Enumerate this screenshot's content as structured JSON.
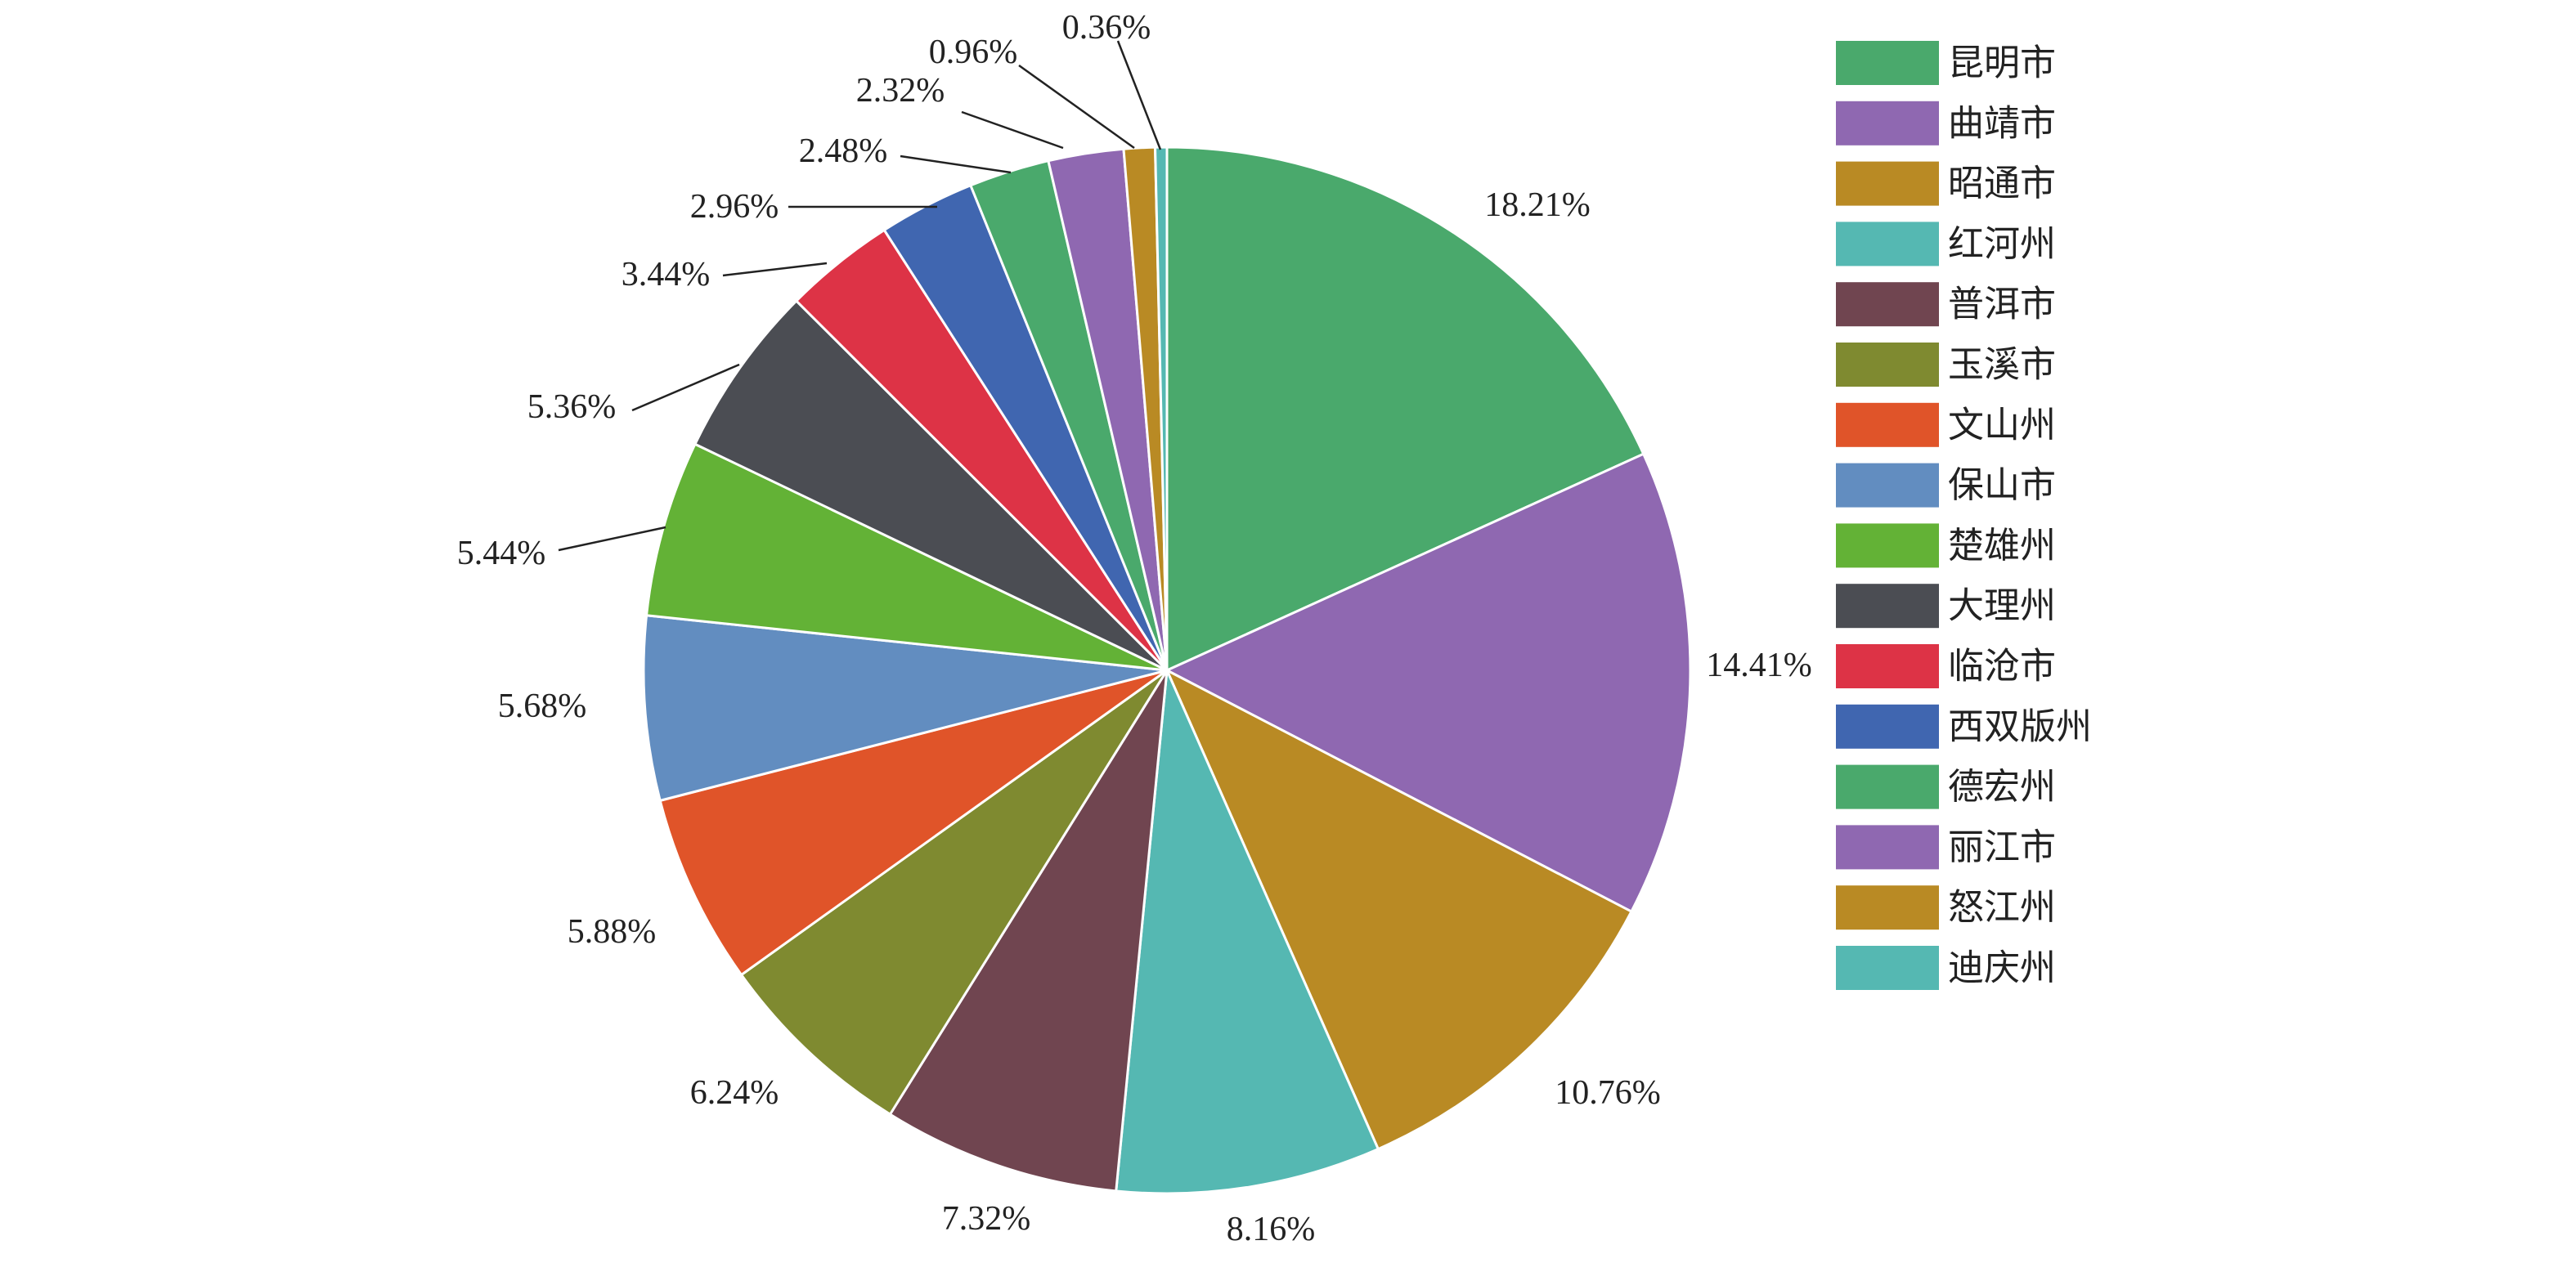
{
  "chart_data": {
    "type": "pie",
    "title": "",
    "start_angle": "top",
    "direction": "clockwise",
    "legend_placement": "right",
    "categories": [
      "昆明市",
      "曲靖市",
      "昭通市",
      "红河州",
      "普洱市",
      "玉溪市",
      "文山州",
      "保山市",
      "楚雄州",
      "大理州",
      "临沧市",
      "西双版州",
      "德宏州",
      "丽江市",
      "怒江州",
      "迪庆州"
    ],
    "values": [
      18.21,
      14.41,
      10.76,
      8.16,
      7.32,
      6.24,
      5.88,
      5.68,
      5.44,
      5.36,
      3.44,
      2.96,
      2.48,
      2.32,
      0.96,
      0.36
    ],
    "labels": [
      "18.21%",
      "14.41%",
      "10.76%",
      "8.16%",
      "7.32%",
      "6.24%",
      "5.88%",
      "5.68%",
      "5.44%",
      "5.36%",
      "3.44%",
      "2.96%",
      "2.48%",
      "2.32%",
      "0.96%",
      "0.36%"
    ],
    "colors": [
      "#4aa96c",
      "#8f68b1",
      "#b98a24",
      "#55b8b2",
      "#704550",
      "#7f8a30",
      "#e05429",
      "#628dc0",
      "#63b236",
      "#4b4d53",
      "#dd3346",
      "#4066b0",
      "#4aa96c",
      "#8f68b1",
      "#b98a24",
      "#55b8b2"
    ]
  }
}
